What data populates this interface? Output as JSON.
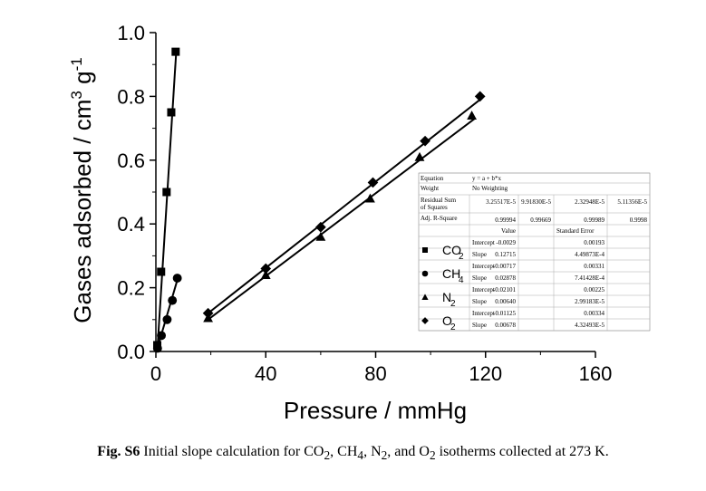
{
  "chart_data": {
    "type": "scatter",
    "xlabel": "Pressure / mmHg",
    "ylabel_main": "Gases adsorbed / cm",
    "ylabel_sup1": "3",
    "ylabel_mid": " g",
    "ylabel_sup2": "-1",
    "xlim": [
      0,
      160
    ],
    "ylim": [
      0,
      1.0
    ],
    "xticks": [
      "0",
      "40",
      "80",
      "120",
      "160"
    ],
    "yticks": [
      "0.0",
      "0.2",
      "0.4",
      "0.6",
      "0.8",
      "1.0"
    ],
    "series": [
      {
        "key": "co2",
        "marker": "square",
        "x": [
          0.5,
          1.9,
          3.9,
          5.6,
          7.2
        ],
        "y": [
          0.02,
          0.25,
          0.5,
          0.75,
          0.94
        ],
        "fit": {
          "x": [
            0.5,
            7.4
          ],
          "y": [
            0.0,
            0.94
          ]
        }
      },
      {
        "key": "ch4",
        "marker": "circle",
        "x": [
          0.6,
          2.0,
          4.1,
          6.0,
          7.8
        ],
        "y": [
          0.01,
          0.05,
          0.1,
          0.16,
          0.23
        ],
        "fit": {
          "x": [
            0.2,
            8.0
          ],
          "y": [
            0.0,
            0.23
          ]
        }
      },
      {
        "key": "n2",
        "marker": "triangle",
        "x": [
          19,
          40,
          60,
          78,
          96,
          115
        ],
        "y": [
          0.105,
          0.24,
          0.36,
          0.48,
          0.61,
          0.74
        ],
        "fit": {
          "x": [
            19,
            116
          ],
          "y": [
            0.1,
            0.73
          ]
        }
      },
      {
        "key": "o2",
        "marker": "diamond",
        "x": [
          19,
          40,
          60,
          79,
          98,
          118
        ],
        "y": [
          0.12,
          0.26,
          0.39,
          0.53,
          0.66,
          0.8
        ],
        "fit": {
          "x": [
            19,
            118
          ],
          "y": [
            0.12,
            0.79
          ]
        }
      }
    ],
    "fit_table": {
      "header_rows": [
        [
          "Equation",
          "y = a + b*x",
          "",
          "",
          ""
        ],
        [
          "Weight",
          "No Weighting",
          "",
          "",
          ""
        ],
        [
          "Residual Sum of Squares",
          "3.25517E-5",
          "9.91830E-5",
          "2.32948E-5",
          "5.11356E-5"
        ],
        [
          "Adj. R-Square",
          "0.99994",
          "0.99669",
          "0.99989",
          "0.9998"
        ]
      ],
      "col_headers": [
        "Value",
        "Standard Error"
      ],
      "gases": [
        {
          "gas": "CO",
          "sub": "2",
          "marker": "square",
          "intercept": [
            "-0.0029",
            "0.00193"
          ],
          "slope": [
            "0.12715",
            "4.49873E-4"
          ]
        },
        {
          "gas": "CH",
          "sub": "4",
          "marker": "circle",
          "intercept": [
            "-0.00717",
            "0.00331"
          ],
          "slope": [
            "0.02878",
            "7.41428E-4"
          ]
        },
        {
          "gas": "N",
          "sub": "2",
          "marker": "triangle",
          "intercept": [
            "-0.02101",
            "0.00225"
          ],
          "slope": [
            "0.00640",
            "2.99183E-5"
          ]
        },
        {
          "gas": "O",
          "sub": "2",
          "marker": "diamond",
          "intercept": [
            "-0.01125",
            "0.00334"
          ],
          "slope": [
            "0.00678",
            "4.32493E-5"
          ]
        }
      ],
      "row_labels": {
        "intercept": "Intercept",
        "slope": "Slope"
      }
    }
  },
  "caption": {
    "label": "Fig. S6",
    "text_1": " Initial slope calculation for CO",
    "sub_1": "2",
    "text_2": ", CH",
    "sub_2": "4",
    "text_3": ", N",
    "sub_3": "2",
    "text_4": ", and O",
    "sub_4": "2",
    "text_5": " isotherms collected at 273 K."
  }
}
